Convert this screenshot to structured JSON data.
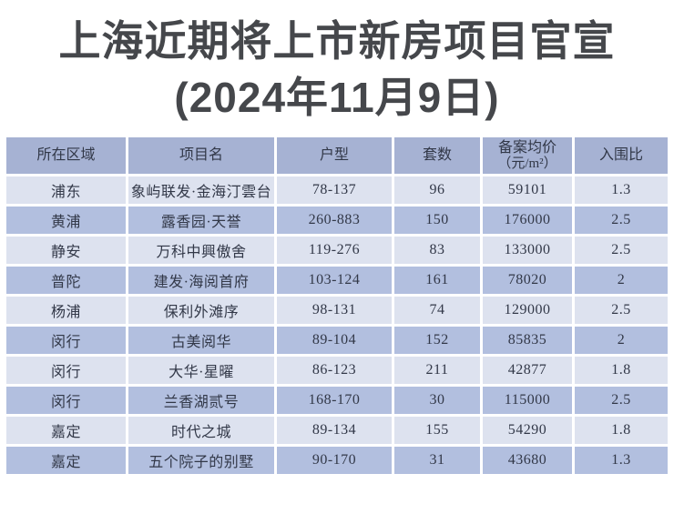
{
  "title": {
    "line1": "上海近期将上市新房项目官宣",
    "line2": "(2024年11月9日)"
  },
  "colors": {
    "background": "#ffffff",
    "title_text": "#45474b",
    "header_bg": "#a6b2d3",
    "row_light_bg": "#dde2ef",
    "row_dark_bg": "#b2bfdf",
    "cell_text": "#323848"
  },
  "table": {
    "headers": {
      "district": "所在区域",
      "project": "项目名",
      "size": "户型",
      "units": "套数",
      "price_line1": "备案均价",
      "price_line2": "（元/m²）",
      "ratio": "入围比"
    },
    "rows": [
      {
        "district": "浦东",
        "project": "象屿联发·金海汀雲台",
        "size": "78-137",
        "units": "96",
        "price": "59101",
        "ratio": "1.3"
      },
      {
        "district": "黄浦",
        "project": "露香园·天誉",
        "size": "260-883",
        "units": "150",
        "price": "176000",
        "ratio": "2.5"
      },
      {
        "district": "静安",
        "project": "万科中興傲舍",
        "size": "119-276",
        "units": "83",
        "price": "133000",
        "ratio": "2.5"
      },
      {
        "district": "普陀",
        "project": "建发·海阅首府",
        "size": "103-124",
        "units": "161",
        "price": "78020",
        "ratio": "2"
      },
      {
        "district": "杨浦",
        "project": "保利外滩序",
        "size": "98-131",
        "units": "74",
        "price": "129000",
        "ratio": "2.5"
      },
      {
        "district": "闵行",
        "project": "古美阅华",
        "size": "89-104",
        "units": "152",
        "price": "85835",
        "ratio": "2"
      },
      {
        "district": "闵行",
        "project": "大华·星曜",
        "size": "86-123",
        "units": "211",
        "price": "42877",
        "ratio": "1.8"
      },
      {
        "district": "闵行",
        "project": "兰香湖贰号",
        "size": "168-170",
        "units": "30",
        "price": "115000",
        "ratio": "2.5"
      },
      {
        "district": "嘉定",
        "project": "时代之城",
        "size": "89-134",
        "units": "155",
        "price": "54290",
        "ratio": "1.8"
      },
      {
        "district": "嘉定",
        "project": "五个院子的别墅",
        "size": "90-170",
        "units": "31",
        "price": "43680",
        "ratio": "1.3"
      }
    ]
  },
  "chart_data": {
    "type": "table",
    "title": "上海近期将上市新房项目官宣 (2024年11月9日)",
    "columns": [
      "所在区域",
      "项目名",
      "户型",
      "套数",
      "备案均价（元/m²）",
      "入围比"
    ],
    "rows": [
      [
        "浦东",
        "象屿联发·金海汀雲台",
        "78-137",
        96,
        59101,
        1.3
      ],
      [
        "黄浦",
        "露香园·天誉",
        "260-883",
        150,
        176000,
        2.5
      ],
      [
        "静安",
        "万科中興傲舍",
        "119-276",
        83,
        133000,
        2.5
      ],
      [
        "普陀",
        "建发·海阅首府",
        "103-124",
        161,
        78020,
        2
      ],
      [
        "杨浦",
        "保利外滩序",
        "98-131",
        74,
        129000,
        2.5
      ],
      [
        "闵行",
        "古美阅华",
        "89-104",
        152,
        85835,
        2
      ],
      [
        "闵行",
        "大华·星曜",
        "86-123",
        211,
        42877,
        1.8
      ],
      [
        "闵行",
        "兰香湖贰号",
        "168-170",
        30,
        115000,
        2.5
      ],
      [
        "嘉定",
        "时代之城",
        "89-134",
        155,
        54290,
        1.8
      ],
      [
        "嘉定",
        "五个院子的别墅",
        "90-170",
        31,
        43680,
        1.3
      ]
    ]
  }
}
